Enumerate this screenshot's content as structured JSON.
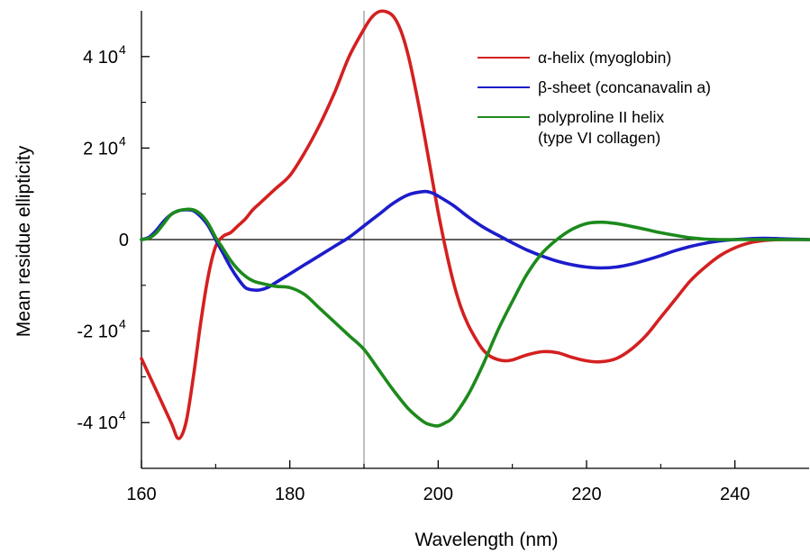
{
  "chart_data": {
    "type": "line",
    "title": "",
    "xlabel": "Wavelength (nm)",
    "ylabel": "Mean residue ellipticity",
    "xlim": [
      160,
      250
    ],
    "ylim": [
      -50000,
      50000
    ],
    "x_ticks": [
      {
        "value": 160,
        "label": "160"
      },
      {
        "value": 180,
        "label": "180"
      },
      {
        "value": 200,
        "label": "200"
      },
      {
        "value": 220,
        "label": "220"
      },
      {
        "value": 240,
        "label": "240"
      }
    ],
    "y_ticks": [
      {
        "value": 40000,
        "label": "4 10",
        "exp": "4"
      },
      {
        "value": 20000,
        "label": "2 10",
        "exp": "4"
      },
      {
        "value": 0,
        "label": "0",
        "exp": ""
      },
      {
        "value": -20000,
        "label": "-2 10",
        "exp": "4"
      },
      {
        "value": -40000,
        "label": "-4 10",
        "exp": "4"
      }
    ],
    "reference_lines": {
      "horizontal_zero": true,
      "vertical_x": 190
    },
    "grid": false,
    "legend_position": "top-right",
    "series": [
      {
        "name": "α-helix (myoglobin)",
        "color": "#d42020",
        "x": [
          160,
          162,
          164,
          165,
          166,
          167,
          168,
          169,
          170,
          171,
          172,
          173,
          174,
          175,
          176,
          178,
          180,
          182,
          184,
          186,
          188,
          190,
          191,
          192,
          193,
          194,
          195,
          196,
          197,
          198,
          199,
          200,
          201,
          202,
          203,
          204,
          205,
          206,
          207,
          208,
          209,
          210,
          212,
          214,
          216,
          218,
          220,
          222,
          224,
          226,
          228,
          230,
          232,
          234,
          236,
          238,
          240,
          242,
          244,
          246,
          248,
          250
        ],
        "y": [
          -26000,
          -33000,
          -40000,
          -43500,
          -40000,
          -30000,
          -18000,
          -8000,
          -1500,
          700,
          1500,
          3000,
          4500,
          6500,
          8000,
          11000,
          14000,
          19000,
          25000,
          32000,
          40000,
          46000,
          48500,
          49800,
          49800,
          48700,
          45500,
          40000,
          32500,
          24000,
          15000,
          6000,
          -2000,
          -9000,
          -14500,
          -18500,
          -21500,
          -24000,
          -25500,
          -26200,
          -26500,
          -26300,
          -25200,
          -24500,
          -24700,
          -25700,
          -26500,
          -26700,
          -26000,
          -24000,
          -21000,
          -17000,
          -13000,
          -9000,
          -6000,
          -3500,
          -1800,
          -700,
          -200,
          0,
          0,
          0
        ]
      },
      {
        "name": "β-sheet (concanavalin a)",
        "color": "#1c1ccc",
        "x": [
          160,
          161,
          162,
          163,
          164,
          165,
          166,
          167,
          168,
          169,
          170,
          171,
          172,
          173,
          174,
          175,
          176,
          177,
          178,
          180,
          182,
          184,
          186,
          188,
          190,
          192,
          194,
          196,
          198,
          199,
          200,
          202,
          204,
          206,
          208,
          210,
          212,
          214,
          216,
          218,
          220,
          222,
          224,
          226,
          228,
          230,
          232,
          234,
          236,
          238,
          240,
          242,
          244,
          246,
          248,
          250
        ],
        "y": [
          0,
          500,
          2000,
          4000,
          5500,
          6300,
          6500,
          6300,
          5000,
          3000,
          0,
          -3000,
          -6000,
          -8500,
          -10500,
          -11000,
          -11000,
          -10500,
          -9500,
          -7500,
          -5500,
          -3500,
          -1500,
          500,
          3000,
          5500,
          8000,
          9800,
          10500,
          10300,
          9500,
          7500,
          5000,
          2800,
          1000,
          -700,
          -2300,
          -3600,
          -4700,
          -5500,
          -6000,
          -6200,
          -6000,
          -5400,
          -4500,
          -3500,
          -2400,
          -1500,
          -800,
          -300,
          0,
          200,
          300,
          200,
          100,
          0
        ]
      },
      {
        "name": "polyproline II helix",
        "name_line2": "(type VI collagen)",
        "color": "#1c8a1c",
        "x": [
          160,
          161,
          162,
          163,
          164,
          165,
          166,
          167,
          168,
          169,
          170,
          171,
          172,
          173,
          174,
          175,
          176,
          178,
          180,
          182,
          184,
          186,
          188,
          190,
          192,
          194,
          196,
          198,
          199,
          200,
          201,
          202,
          204,
          206,
          208,
          210,
          212,
          214,
          216,
          218,
          220,
          222,
          224,
          226,
          228,
          230,
          232,
          234,
          236,
          238,
          240,
          242,
          244,
          246,
          248,
          250
        ],
        "y": [
          0,
          300,
          1500,
          3500,
          5500,
          6300,
          6600,
          6500,
          5500,
          3500,
          500,
          -2000,
          -4500,
          -6500,
          -8000,
          -9000,
          -9500,
          -10200,
          -10500,
          -12000,
          -15000,
          -18000,
          -21000,
          -24000,
          -28500,
          -33000,
          -37000,
          -39800,
          -40500,
          -40700,
          -40000,
          -38800,
          -34000,
          -27500,
          -20000,
          -13500,
          -7500,
          -3000,
          0,
          2200,
          3500,
          3800,
          3500,
          2900,
          2200,
          1500,
          900,
          400,
          100,
          0,
          0,
          0,
          0,
          0,
          0,
          0
        ]
      }
    ]
  }
}
